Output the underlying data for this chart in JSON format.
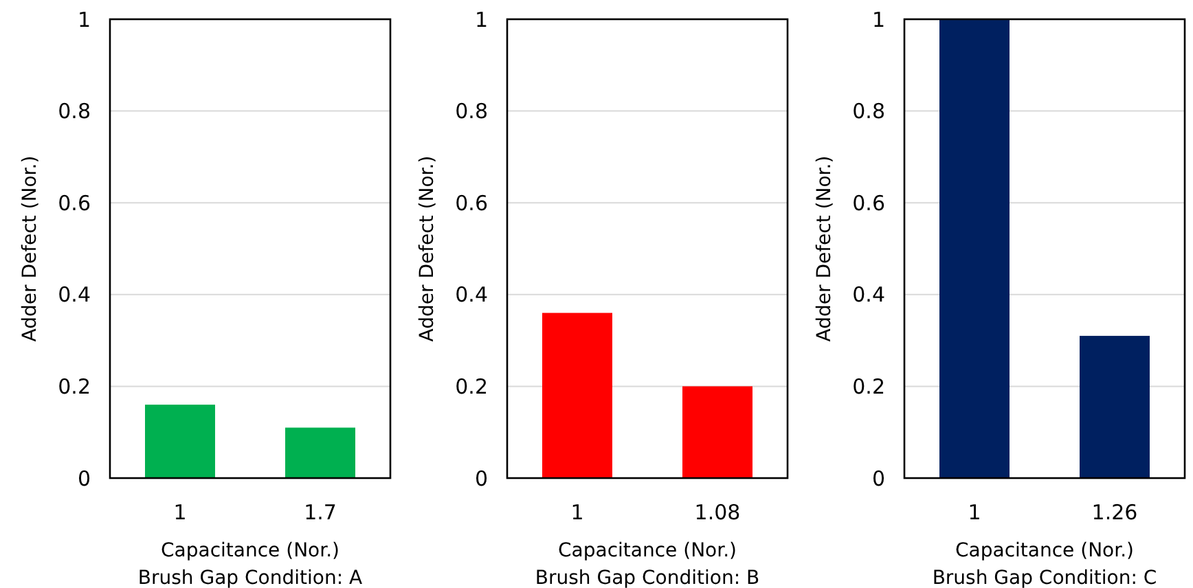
{
  "chart_data": [
    {
      "type": "bar",
      "categories": [
        "1",
        "1.7"
      ],
      "values": [
        0.16,
        0.11
      ],
      "color": "#00b050",
      "xlabel": "Capacitance (Nor.)",
      "ylabel": "Adder Defect (Nor.)",
      "annotations": [
        "Brush Gap Condition: A"
      ],
      "ylim": [
        0,
        1
      ],
      "yticks": [
        0,
        0.2,
        0.4,
        0.6,
        0.8,
        1
      ],
      "grid": "y"
    },
    {
      "type": "bar",
      "categories": [
        "1",
        "1.08"
      ],
      "values": [
        0.36,
        0.2
      ],
      "color": "#ff0000",
      "xlabel": "Capacitance (Nor.)",
      "ylabel": "Adder Defect (Nor.)",
      "annotations": [
        "Brush Gap Condition: B"
      ],
      "ylim": [
        0,
        1
      ],
      "yticks": [
        0,
        0.2,
        0.4,
        0.6,
        0.8,
        1
      ],
      "grid": "y"
    },
    {
      "type": "bar",
      "categories": [
        "1",
        "1.26"
      ],
      "values": [
        1,
        0.31
      ],
      "color": "#002060",
      "xlabel": "Capacitance (Nor.)",
      "ylabel": "Adder Defect (Nor.)",
      "annotations": [
        "Brush Gap Condition: C"
      ],
      "ylim": [
        0,
        1
      ],
      "yticks": [
        0,
        0.2,
        0.4,
        0.6,
        0.8,
        1
      ],
      "grid": "y"
    }
  ]
}
